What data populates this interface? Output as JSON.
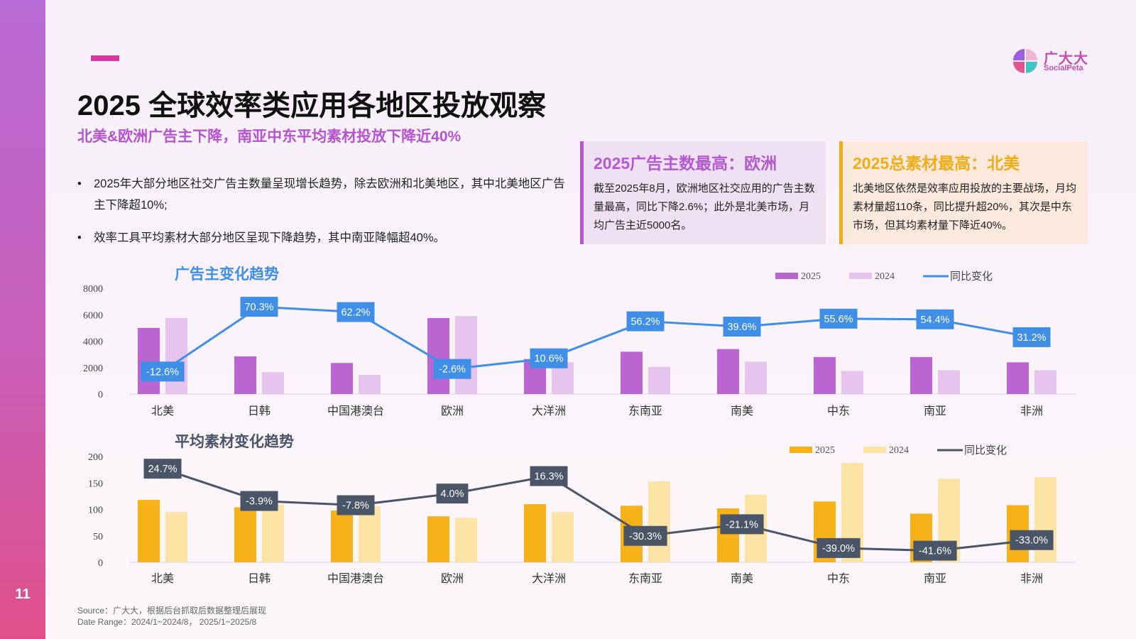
{
  "page_number": "11",
  "logo": {
    "cn": "广大大",
    "en": "SocialPeta",
    "icon": "quad-petal-logo-icon"
  },
  "title": "2025 全球效率类应用各地区投放观察",
  "subtitle": "北美&欧洲广告主下降，南亚中东平均素材投放下降近40%",
  "bullets": [
    "2025年大部分地区社交广告主数量呈现增长趋势，除去欧洲和北美地区，其中北美地区广告主下降超10%;",
    "效率工具平均素材大部分地区呈现下降趋势，其中南亚降幅超40%。"
  ],
  "cards": {
    "europe": {
      "title": "2025广告主数最高：欧洲",
      "body": "截至2025年8月，欧洲地区社交应用的广告主数量最高，同比下降2.6%；此外是北美市场，月均广告主近5000名。"
    },
    "north_america": {
      "title": "2025总素材最高：北美",
      "body": "北美地区依然是效率应用投放的主要战场，月均素材量超110条，同比提升超20%，其次是中东市场，但其均素材量下降近40%。"
    }
  },
  "source": {
    "line1": "Source：广大大，根据后台抓取后数据整理后展现",
    "line2": "Date Range：2024/1~2024/8， 2025/1~2025/8"
  },
  "colors": {
    "adv_2025": "#bb65d3",
    "adv_2024": "#e6c4ee",
    "adv_yoy": "#3f8fe8",
    "mat_2025": "#f8b219",
    "mat_2024": "#fde3a4",
    "mat_yoy": "#4a5567"
  },
  "chart_data": [
    {
      "type": "bar",
      "title": "广告主变化趋势",
      "categories": [
        "北美",
        "日韩",
        "中国港澳台",
        "欧洲",
        "大洋洲",
        "东南亚",
        "南美",
        "中东",
        "南亚",
        "非洲"
      ],
      "series": [
        {
          "name": "2025",
          "values": [
            5000,
            2850,
            2350,
            5750,
            2650,
            3200,
            3400,
            2800,
            2800,
            2400
          ]
        },
        {
          "name": "2024",
          "values": [
            5750,
            1650,
            1450,
            5900,
            2400,
            2050,
            2450,
            1750,
            1800,
            1800
          ]
        }
      ],
      "line_series": {
        "name": "同比变化",
        "labels": [
          "-12.6%",
          "70.3%",
          "62.2%",
          "-2.6%",
          "10.6%",
          "56.2%",
          "39.6%",
          "55.6%",
          "54.4%",
          "31.2%"
        ],
        "values": [
          1700,
          6600,
          6200,
          1900,
          2700,
          5500,
          5100,
          5700,
          5650,
          4300
        ]
      },
      "yticks": [
        0,
        2000,
        4000,
        6000,
        8000
      ],
      "ylim": [
        0,
        8000
      ],
      "legend_position": "top-right",
      "grid": false
    },
    {
      "type": "bar",
      "title": "平均素材变化趋势",
      "categories": [
        "北美",
        "日韩",
        "中国港澳台",
        "欧洲",
        "大洋洲",
        "东南亚",
        "南美",
        "中东",
        "南亚",
        "非洲"
      ],
      "series": [
        {
          "name": "2025",
          "values": [
            118,
            104,
            98,
            87,
            110,
            107,
            102,
            115,
            92,
            108
          ]
        },
        {
          "name": "2024",
          "values": [
            95,
            109,
            106,
            84,
            95,
            153,
            128,
            188,
            158,
            161
          ]
        }
      ],
      "line_series": {
        "name": "同比变化",
        "labels": [
          "24.7%",
          "-3.9%",
          "-7.8%",
          "4.0%",
          "16.3%",
          "-30.3%",
          "-21.1%",
          "-39.0%",
          "-41.6%",
          "-33.0%"
        ],
        "values": [
          177,
          116,
          108,
          130,
          163,
          50,
          72,
          27,
          22,
          42
        ]
      },
      "yticks": [
        0,
        50,
        100,
        150,
        200
      ],
      "ylim": [
        0,
        200
      ],
      "legend_position": "top-right",
      "grid": false
    }
  ]
}
